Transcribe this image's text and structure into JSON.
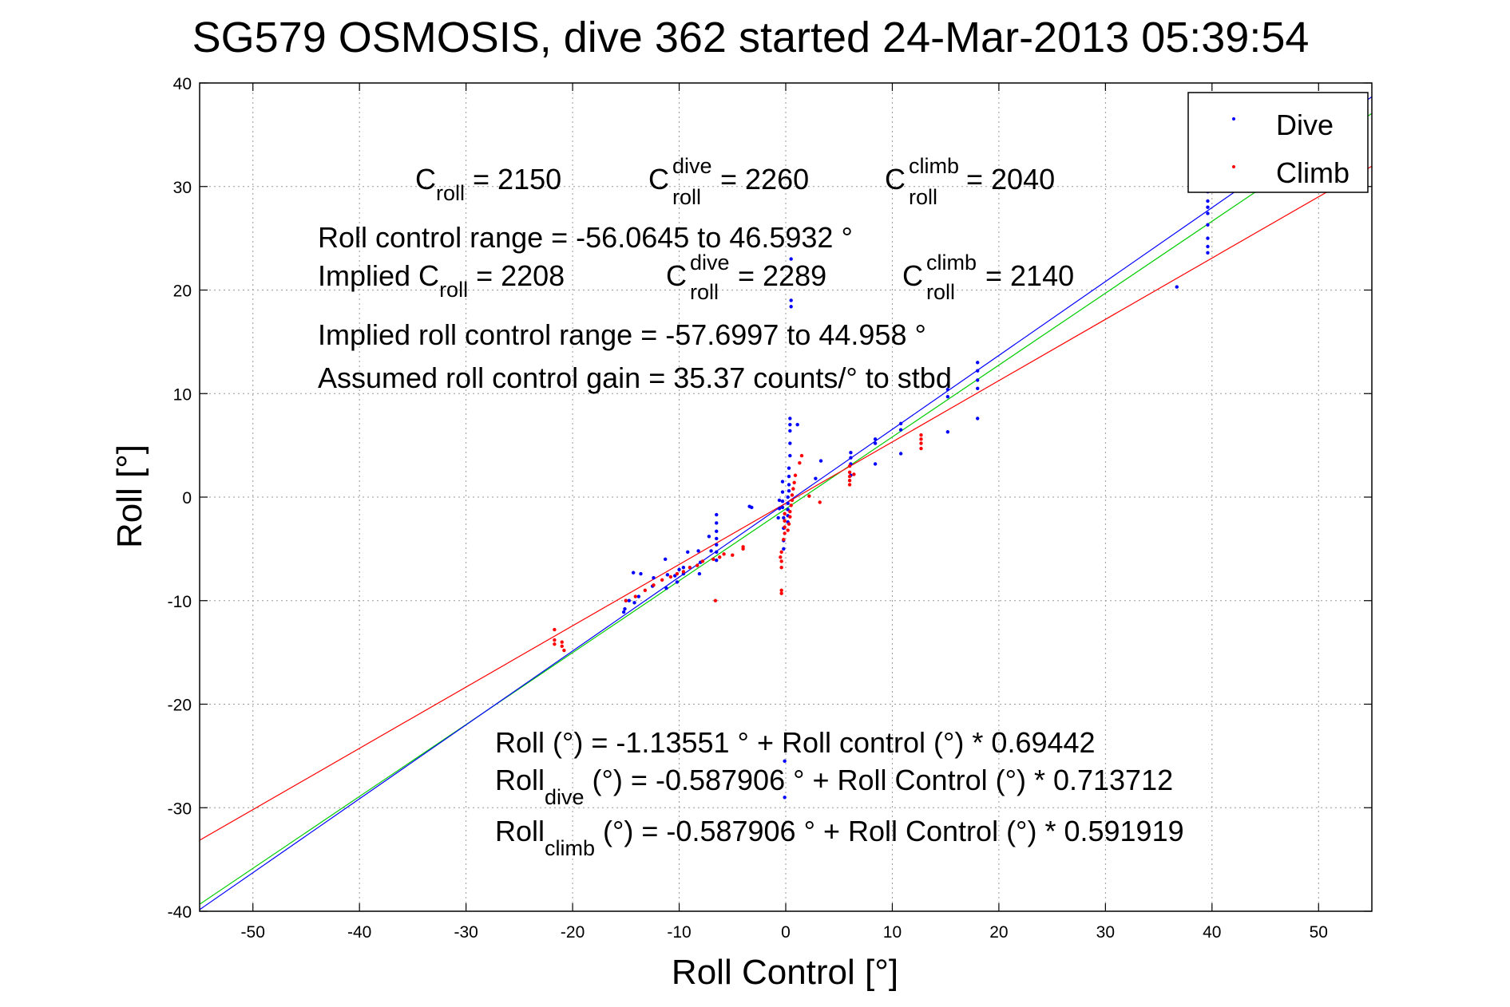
{
  "chart_data": {
    "type": "scatter",
    "title": "SG579 OSMOSIS, dive 362 started 24-Mar-2013 05:39:54",
    "xlabel": "Roll Control [°]",
    "ylabel": "Roll [°]",
    "xlim": [
      -55,
      55
    ],
    "ylim": [
      -40,
      40
    ],
    "xticks": [
      -50,
      -40,
      -30,
      -20,
      -10,
      0,
      10,
      20,
      30,
      40,
      50
    ],
    "yticks": [
      -40,
      -30,
      -20,
      -10,
      0,
      10,
      20,
      30,
      40
    ],
    "grid": true,
    "legend": {
      "position": "top-right",
      "entries": [
        "Dive",
        "Climb"
      ]
    },
    "colors": {
      "dive": "#0000ff",
      "climb": "#ff0000",
      "fit_all": "#00cc00",
      "grid": "#999999"
    },
    "fits": [
      {
        "series": "all",
        "intercept": -1.13551,
        "slope": 0.69442,
        "color": "#00cc00"
      },
      {
        "series": "Dive",
        "intercept": -0.587906,
        "slope": 0.713712,
        "color": "#0000ff"
      },
      {
        "series": "Climb",
        "intercept": -0.587906,
        "slope": 0.591919,
        "color": "#ff0000"
      }
    ],
    "series": [
      {
        "name": "Dive",
        "color": "#0000ff",
        "points": [
          [
            39.6,
            29.5
          ],
          [
            39.6,
            28.6
          ],
          [
            39.6,
            28.0
          ],
          [
            39.6,
            27.4
          ],
          [
            39.6,
            26.3
          ],
          [
            39.6,
            25.0
          ],
          [
            39.6,
            24.2
          ],
          [
            39.6,
            23.6
          ],
          [
            36.7,
            20.3
          ],
          [
            18.0,
            13.0
          ],
          [
            18.0,
            12.2
          ],
          [
            18.0,
            11.3
          ],
          [
            18.0,
            10.5
          ],
          [
            18.0,
            7.6
          ],
          [
            15.2,
            10.4
          ],
          [
            15.2,
            9.7
          ],
          [
            15.2,
            6.3
          ],
          [
            10.8,
            7.1
          ],
          [
            10.8,
            6.5
          ],
          [
            10.8,
            4.2
          ],
          [
            8.4,
            5.6
          ],
          [
            8.4,
            5.2
          ],
          [
            8.4,
            3.2
          ],
          [
            6.1,
            4.3
          ],
          [
            6.1,
            3.8
          ],
          [
            6.1,
            3.2
          ],
          [
            6.1,
            2.1
          ],
          [
            3.3,
            3.5
          ],
          [
            2.8,
            1.8
          ],
          [
            0.5,
            23.0
          ],
          [
            0.5,
            19.0
          ],
          [
            0.5,
            18.4
          ],
          [
            1.1,
            7.0
          ],
          [
            0.4,
            7.6
          ],
          [
            0.4,
            7.0
          ],
          [
            0.4,
            6.4
          ],
          [
            0.4,
            5.2
          ],
          [
            0.4,
            4.0
          ],
          [
            0.3,
            2.8
          ],
          [
            0.3,
            2.0
          ],
          [
            0.3,
            1.2
          ],
          [
            0.3,
            0.6
          ],
          [
            0.2,
            0.0
          ],
          [
            0.2,
            -0.6
          ],
          [
            0.2,
            -1.2
          ],
          [
            0.2,
            -1.8
          ],
          [
            0.2,
            -2.4
          ],
          [
            -0.3,
            1.5
          ],
          [
            -0.3,
            0.5
          ],
          [
            -0.3,
            -0.4
          ],
          [
            -0.3,
            -1.0
          ],
          [
            -0.2,
            -2.0
          ],
          [
            -0.2,
            -3.0
          ],
          [
            -0.2,
            -4.2
          ],
          [
            -0.2,
            -5.0
          ],
          [
            -0.6,
            -0.3
          ],
          [
            -0.6,
            -1.1
          ],
          [
            -0.7,
            -2.0
          ],
          [
            -0.1,
            -25.5
          ],
          [
            -0.1,
            -29.0
          ],
          [
            -3.2,
            -1.0
          ],
          [
            -3.4,
            -0.9
          ],
          [
            -6.5,
            -1.7
          ],
          [
            -6.5,
            -2.5
          ],
          [
            -6.5,
            -3.3
          ],
          [
            -6.5,
            -4.0
          ],
          [
            -6.5,
            -4.6
          ],
          [
            -6.5,
            -5.3
          ],
          [
            -6.5,
            -6.1
          ],
          [
            -7.2,
            -3.8
          ],
          [
            -7.0,
            -5.2
          ],
          [
            -8.2,
            -5.2
          ],
          [
            -8.0,
            -6.3
          ],
          [
            -8.1,
            -7.4
          ],
          [
            -9.2,
            -5.3
          ],
          [
            -9.6,
            -6.8
          ],
          [
            -9.6,
            -7.4
          ],
          [
            -10.0,
            -7.0
          ],
          [
            -10.4,
            -7.6
          ],
          [
            -10.2,
            -8.2
          ],
          [
            -11.3,
            -6.0
          ],
          [
            -11.1,
            -7.5
          ],
          [
            -11.2,
            -8.8
          ],
          [
            -12.4,
            -7.8
          ],
          [
            -12.5,
            -8.6
          ],
          [
            -13.6,
            -7.4
          ],
          [
            -13.8,
            -9.6
          ],
          [
            -14.3,
            -7.3
          ],
          [
            -14.2,
            -10.2
          ],
          [
            -14.7,
            -10.0
          ],
          [
            -15.0,
            -10.0
          ],
          [
            -15.1,
            -10.8
          ],
          [
            -15.2,
            -11.1
          ]
        ]
      },
      {
        "name": "Climb",
        "color": "#ff0000",
        "points": [
          [
            12.7,
            6.0
          ],
          [
            12.7,
            5.6
          ],
          [
            12.7,
            5.2
          ],
          [
            12.7,
            4.7
          ],
          [
            6.0,
            3.0
          ],
          [
            6.0,
            2.4
          ],
          [
            6.0,
            2.0
          ],
          [
            6.0,
            1.6
          ],
          [
            6.0,
            1.2
          ],
          [
            6.4,
            2.2
          ],
          [
            3.2,
            -0.5
          ],
          [
            2.2,
            0.1
          ],
          [
            1.5,
            4.0
          ],
          [
            1.3,
            3.3
          ],
          [
            0.9,
            2.1
          ],
          [
            0.8,
            1.4
          ],
          [
            0.7,
            0.8
          ],
          [
            0.6,
            0.2
          ],
          [
            0.6,
            -0.3
          ],
          [
            0.5,
            -0.8
          ],
          [
            0.4,
            -1.4
          ],
          [
            0.4,
            -1.9
          ],
          [
            0.3,
            -2.6
          ],
          [
            0.2,
            -3.2
          ],
          [
            -0.1,
            -1.6
          ],
          [
            -0.1,
            -2.3
          ],
          [
            -0.1,
            -2.9
          ],
          [
            -0.1,
            -3.5
          ],
          [
            -0.2,
            -4.1
          ],
          [
            -0.4,
            -5.3
          ],
          [
            -0.5,
            -5.8
          ],
          [
            -0.4,
            -6.2
          ],
          [
            -0.4,
            -6.8
          ],
          [
            -0.4,
            -9.0
          ],
          [
            -0.4,
            -9.3
          ],
          [
            -4.0,
            -4.8
          ],
          [
            -4.0,
            -5.0
          ],
          [
            -5.0,
            -5.6
          ],
          [
            -5.8,
            -5.5
          ],
          [
            -6.2,
            -5.8
          ],
          [
            -6.8,
            -6.0
          ],
          [
            -6.6,
            -10.0
          ],
          [
            -7.8,
            -6.2
          ],
          [
            -8.3,
            -6.6
          ],
          [
            -9.0,
            -6.8
          ],
          [
            -9.6,
            -7.2
          ],
          [
            -10.2,
            -7.4
          ],
          [
            -10.8,
            -7.7
          ],
          [
            -11.6,
            -8.0
          ],
          [
            -12.4,
            -8.5
          ],
          [
            -13.2,
            -9.0
          ],
          [
            -14.1,
            -9.6
          ],
          [
            -15.0,
            -10.0
          ],
          [
            -21.7,
            -12.8
          ],
          [
            -21.7,
            -13.8
          ],
          [
            -21.7,
            -14.2
          ],
          [
            -21.0,
            -14.0
          ],
          [
            -21.0,
            -14.4
          ],
          [
            -20.8,
            -14.8
          ]
        ]
      }
    ],
    "annotations": {
      "c_roll": {
        "main": "C",
        "sub": "roll",
        "value": " = 2150"
      },
      "c_roll_dive": {
        "main": "C",
        "sup": "dive",
        "sub": "roll",
        "value": " = 2260"
      },
      "c_roll_climb": {
        "main": "C",
        "sup": "climb",
        "sub": "roll",
        "value": " = 2040"
      },
      "range": "Roll control range = -56.0645 to 46.5932 °",
      "implied_c_roll": {
        "main": "Implied C",
        "sub": "roll",
        "value": " = 2208"
      },
      "implied_c_roll_dive": {
        "main": "C",
        "sup": "dive",
        "sub": "roll",
        "value": " = 2289"
      },
      "implied_c_roll_climb": {
        "main": "C",
        "sup": "climb",
        "sub": "roll",
        "value": " = 2140"
      },
      "implied_range": "Implied roll control range = -57.6997 to 44.958 °",
      "gain": "Assumed roll control gain = 35.37 counts/° to stbd",
      "fit_all": "Roll (°) = -1.13551 ° + Roll control (°) * 0.69442",
      "fit_dive": {
        "main": "Roll",
        "sub": "dive",
        "value": " (°) = -0.587906 ° + Roll Control (°) * 0.713712"
      },
      "fit_climb": {
        "main": "Roll",
        "sub": "climb",
        "value": " (°) = -0.587906 ° + Roll Control (°) * 0.591919"
      }
    }
  }
}
